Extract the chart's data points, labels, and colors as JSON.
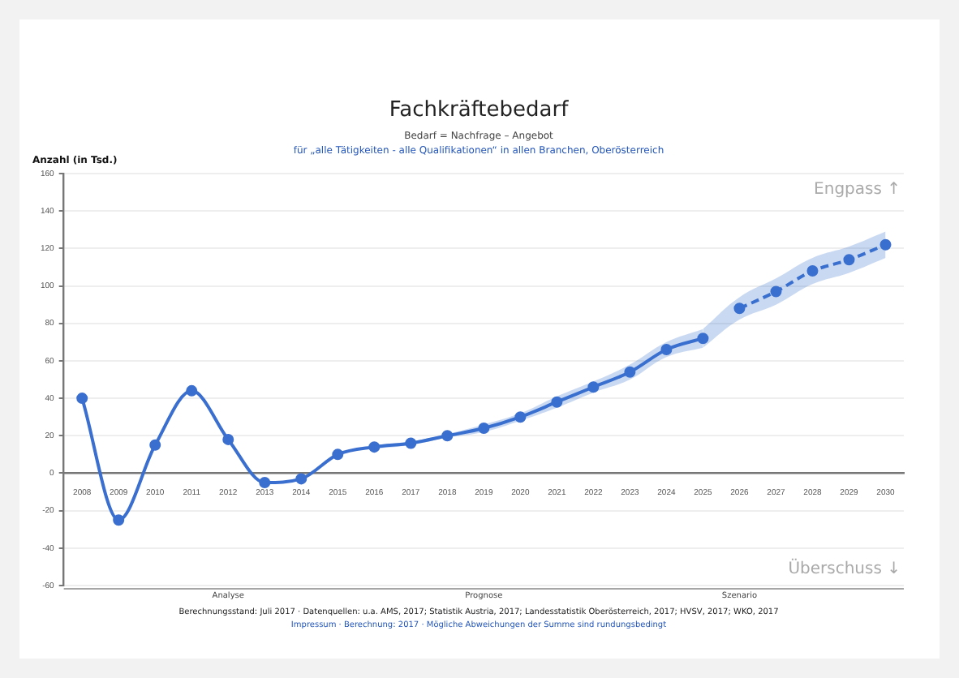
{
  "chart_data": {
    "type": "line",
    "title": "Fachkräftebedarf",
    "subtitle": "Bedarf = Nachfrage – Angebot\nfür „alle Tätigkeiten - alle Qualifikationen“ in allen Branchen, Oberösterreich",
    "ylabel": "Anzahl (in Tsd.)",
    "categories": [
      "2008",
      "2009",
      "2010",
      "2011",
      "2012",
      "2013",
      "2014",
      "2015",
      "2016",
      "2017",
      "2018",
      "2019",
      "2020",
      "2021",
      "2022",
      "2023",
      "2024",
      "2025",
      "2026",
      "2027",
      "2028",
      "2029",
      "2030"
    ],
    "series": [
      {
        "color": "#3a6fcf",
        "line_style": "solid",
        "values": [
          40,
          -25,
          15,
          44,
          18,
          -5,
          -3,
          10,
          14,
          16,
          20,
          24,
          30,
          38,
          46,
          54,
          66,
          72,
          null,
          null,
          null,
          null,
          null
        ],
        "lower": [
          null,
          null,
          null,
          null,
          null,
          null,
          null,
          null,
          13,
          15,
          19,
          22,
          28,
          35,
          43,
          50,
          62,
          67,
          null,
          null,
          null,
          null,
          null
        ],
        "upper": [
          null,
          null,
          null,
          null,
          null,
          null,
          null,
          null,
          15,
          17,
          21,
          26,
          32,
          41,
          49,
          58,
          70,
          77,
          null,
          null,
          null,
          null,
          null
        ]
      },
      {
        "color": "#3a6fcf",
        "line_style": "dashed",
        "values": [
          null,
          null,
          null,
          null,
          null,
          null,
          null,
          null,
          null,
          null,
          null,
          null,
          null,
          null,
          null,
          null,
          null,
          null,
          88,
          97,
          108,
          114,
          122
        ],
        "lower": [
          null,
          null,
          null,
          null,
          null,
          null,
          null,
          null,
          null,
          null,
          null,
          null,
          null,
          null,
          null,
          null,
          null,
          67,
          82,
          90,
          101,
          107,
          115
        ],
        "upper": [
          null,
          null,
          null,
          null,
          null,
          null,
          null,
          null,
          null,
          null,
          null,
          null,
          null,
          null,
          null,
          null,
          null,
          77,
          94,
          104,
          115,
          121,
          129
        ]
      }
    ],
    "ylim": [
      -60,
      160
    ],
    "yticks": [
      -60,
      -40,
      -20,
      0,
      20,
      40,
      60,
      80,
      100,
      120,
      140,
      160
    ],
    "grid": "y",
    "legend": false,
    "marker": "circle",
    "annotations": [
      "Engpass ↑",
      "Überschuss ↓",
      "Analyse",
      "Prognose",
      "Szenario",
      "Berechnungsstand: Juli 2017 · Datenquellen: u.a. AMS, 2017; Statistik Austria, 2017; Landesstatistik Oberösterreich, 2017; HVSV, 2017; WKO, 2017",
      "Impressum · Berechnung: 2017 · Mögliche Abweichungen der Summe sind rundungsbedingt"
    ]
  }
}
